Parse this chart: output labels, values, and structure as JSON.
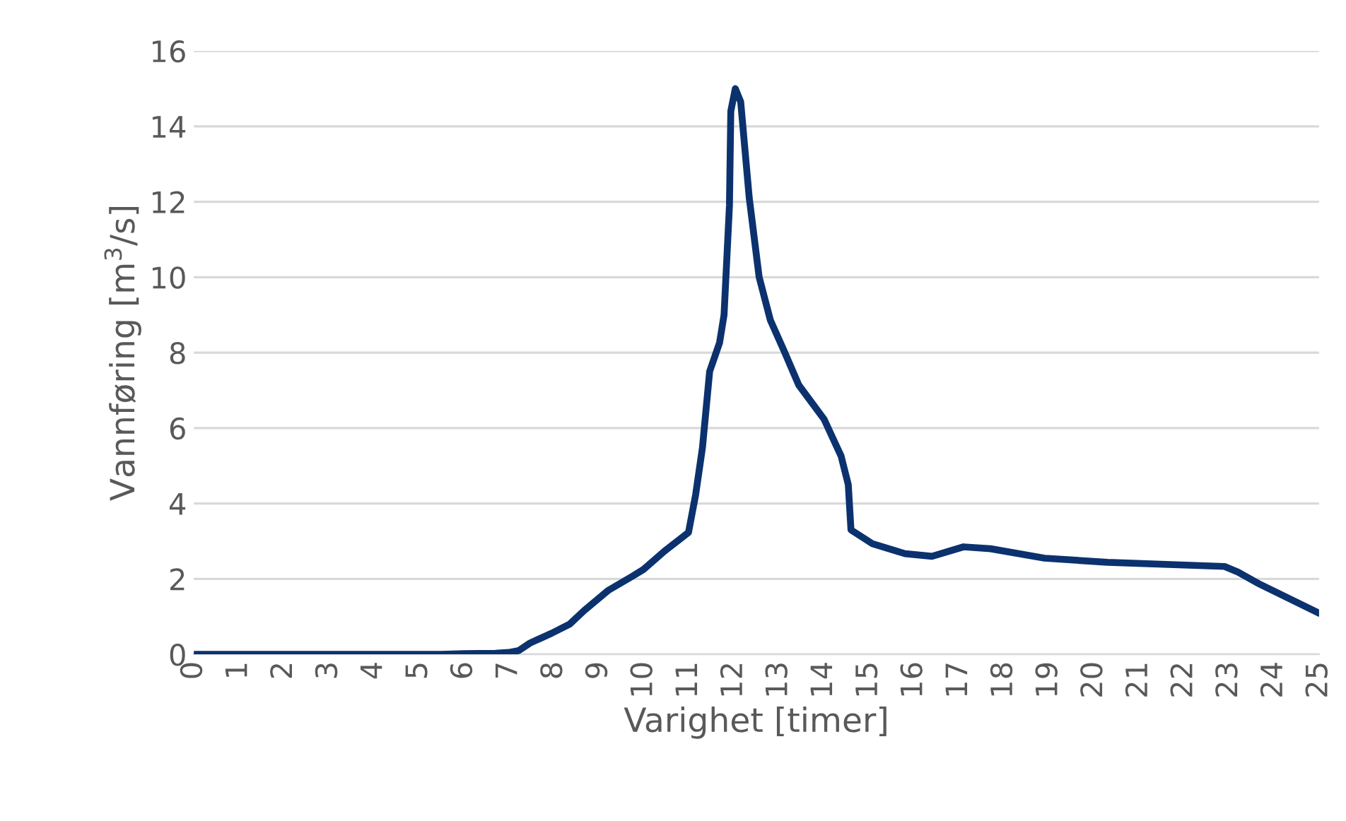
{
  "chart_data": {
    "type": "line",
    "xlabel": "Varighet [timer]",
    "ylabel": "Vannføring [m$^{3}$/s]",
    "xlim": [
      0,
      25
    ],
    "xticks": [
      0,
      1,
      2,
      3,
      4,
      5,
      6,
      7,
      8,
      9,
      10,
      11,
      12,
      13,
      14,
      15,
      16,
      17,
      18,
      19,
      20,
      21,
      22,
      23,
      24,
      25
    ],
    "ylim": [
      0,
      16
    ],
    "yticks": [
      0,
      2,
      4,
      6,
      8,
      10,
      12,
      14,
      16
    ],
    "grid": "y",
    "legend": false,
    "marker": "none",
    "line_style": "solid",
    "series": [
      {
        "color": "#0b326e",
        "x": [
          0,
          1,
          2,
          3,
          4,
          5,
          5.5,
          6.0,
          6.7,
          7.0,
          7.22,
          7.47,
          7.95,
          8.35,
          8.67,
          9.2,
          9.73,
          9.99,
          10.46,
          10.99,
          11.15,
          11.3,
          11.46,
          11.68,
          11.78,
          11.9,
          11.93,
          12.03,
          12.15,
          12.34,
          12.56,
          12.81,
          13.13,
          13.44,
          14.0,
          14.38,
          14.54,
          14.6,
          15.08,
          15.8,
          16.4,
          17.1,
          17.7,
          18.9,
          20.3,
          22.9,
          23.2,
          23.65,
          25
        ],
        "values": [
          0,
          0,
          0,
          0,
          0,
          0,
          0,
          0.02,
          0.03,
          0.05,
          0.1,
          0.3,
          0.56,
          0.8,
          1.16,
          1.69,
          2.06,
          2.25,
          2.74,
          3.23,
          4.24,
          5.48,
          7.5,
          8.26,
          9.0,
          11.9,
          14.4,
          15.0,
          14.65,
          12.1,
          10.0,
          8.86,
          8.0,
          7.14,
          6.24,
          5.26,
          4.5,
          3.3,
          2.93,
          2.67,
          2.6,
          2.85,
          2.8,
          2.55,
          2.44,
          2.33,
          2.18,
          1.88,
          1.09
        ]
      }
    ]
  }
}
